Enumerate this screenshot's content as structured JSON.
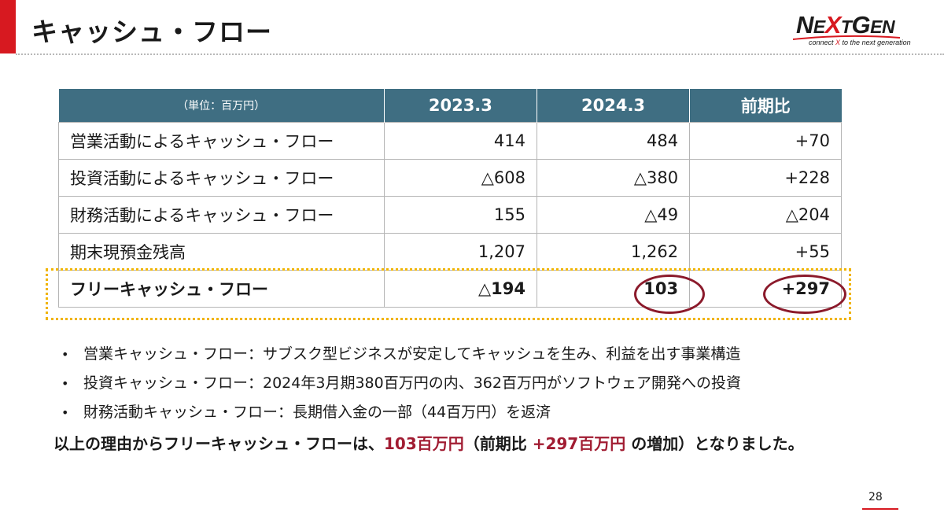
{
  "header": {
    "title": "キャッシュ・フロー",
    "accent_color": "#d71920"
  },
  "logo": {
    "word_n": "N",
    "word_e": "E",
    "word_x": "X",
    "word_t": "T",
    "word_g": "G",
    "word_en": "EN",
    "tagline_pre": "connect ",
    "tagline_x": "X",
    "tagline_post": " to the next generation"
  },
  "table": {
    "unit_label": "（単位：百万円）",
    "columns": [
      "2023.3",
      "2024.3",
      "前期比"
    ],
    "rows": [
      {
        "label": "営業活動によるキャッシュ・フロー",
        "values": [
          "414",
          "484",
          "+70"
        ]
      },
      {
        "label": "投資活動によるキャッシュ・フロー",
        "values": [
          "△608",
          "△380",
          "+228"
        ]
      },
      {
        "label": "財務活動によるキャッシュ・フロー",
        "values": [
          "155",
          "△49",
          "△204"
        ]
      },
      {
        "label": "期末現預金残高",
        "values": [
          "1,207",
          "1,262",
          "+55"
        ]
      },
      {
        "label": "フリーキャッシュ・フロー",
        "values": [
          "△194",
          "103",
          "+297"
        ]
      }
    ],
    "header_color": "#3f6e82",
    "highlight_box_color": "#f0b400",
    "circle_color": "#8b1a2b"
  },
  "bullets": [
    "営業キャッシュ・フロー：サブスク型ビジネスが安定してキャッシュを生み、利益を出す事業構造",
    "投資キャッシュ・フロー：2024年3月期380百万円の内、362百万円がソフトウェア開発への投資",
    "財務活動キャッシュ・フロー：長期借入金の一部（44百万円）を返済"
  ],
  "bullet_marker": "•",
  "summary": {
    "part1": "以上の理由からフリーキャッシュ・フローは、",
    "hl1": "103百万円",
    "part2": "（前期比 ",
    "hl2": "+297百万円",
    "part3": " の増加）となりました。",
    "highlight_color": "#a11c32"
  },
  "page": {
    "number": "28"
  }
}
